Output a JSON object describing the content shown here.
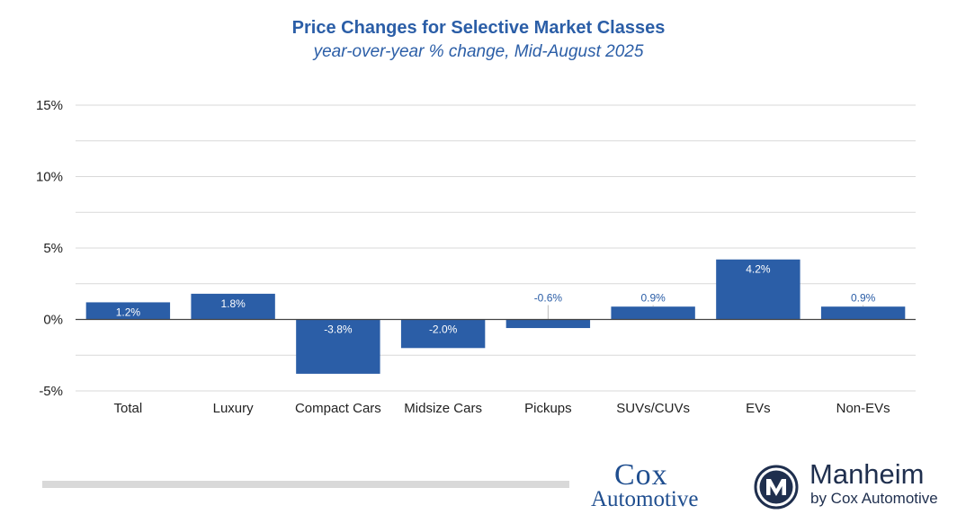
{
  "chart_data": {
    "type": "bar",
    "title": "Price Changes for Selective Market Classes",
    "subtitle": "year-over-year % change, Mid-August 2025",
    "categories": [
      "Total",
      "Luxury",
      "Compact Cars",
      "Midsize Cars",
      "Pickups",
      "SUVs/CUVs",
      "EVs",
      "Non-EVs"
    ],
    "values": [
      1.2,
      1.8,
      -3.8,
      -2.0,
      -0.6,
      0.9,
      4.2,
      0.9
    ],
    "data_labels": [
      "1.2%",
      "1.8%",
      "-3.8%",
      "-2.0%",
      "-0.6%",
      "0.9%",
      "4.2%",
      "0.9%"
    ],
    "ylim": [
      -5,
      15
    ],
    "y_ticks": [
      15,
      10,
      5,
      0,
      -5
    ],
    "y_tick_labels": [
      "15%",
      "10%",
      "5%",
      "0%",
      "-5%"
    ],
    "grid": true,
    "xlabel": "",
    "ylabel": "",
    "colors": {
      "bar": "#2b5ea7",
      "title": "#2b5ea7",
      "grid": "#d9d9d9",
      "axis": "#444444"
    }
  },
  "footer": {
    "cox_logo": {
      "line1": "Cox",
      "line2": "Automotive"
    },
    "manheim_logo": {
      "name": "Manheim",
      "tagline": "by Cox Automotive",
      "icon": "manheim-m-icon"
    }
  }
}
